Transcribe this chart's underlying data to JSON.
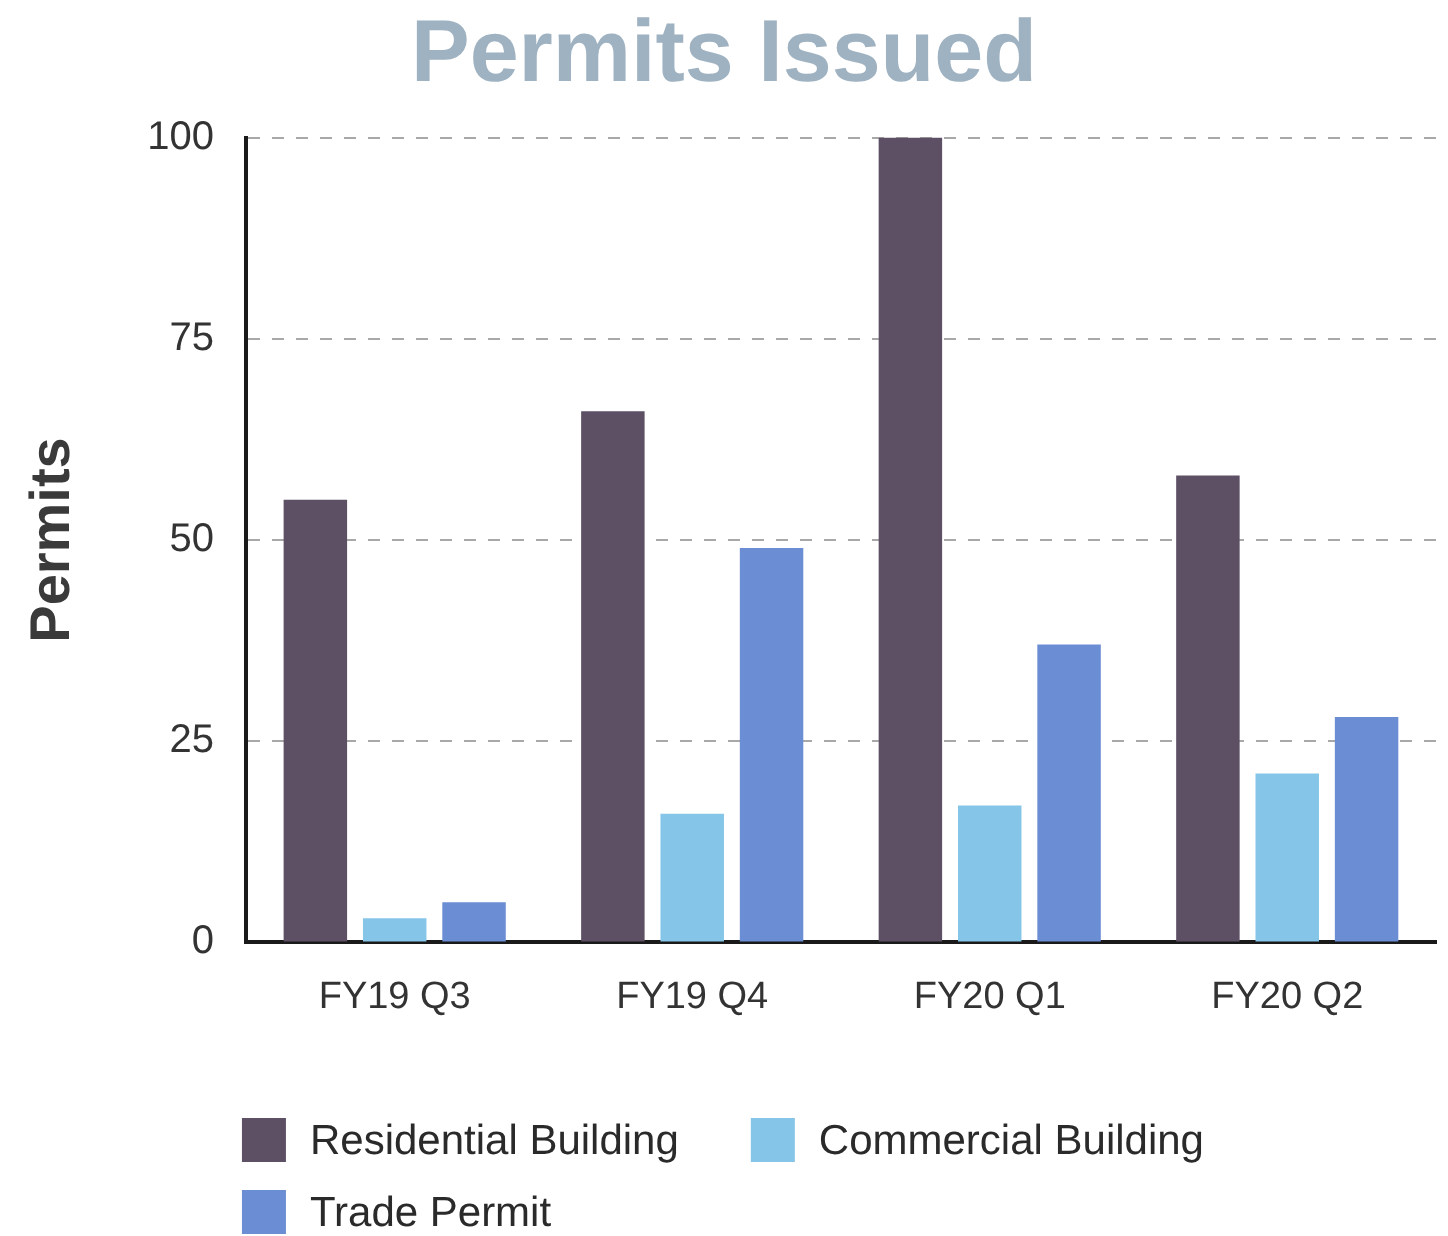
{
  "chart_data": {
    "type": "bar",
    "title": "Permits Issued",
    "ylabel": "Permits",
    "categories": [
      "FY19 Q3",
      "FY19 Q4",
      "FY20 Q1",
      "FY20 Q2"
    ],
    "series": [
      {
        "name": "Residential Building",
        "color": "#5d5064",
        "values": [
          55,
          66,
          100,
          58
        ]
      },
      {
        "name": "Commercial Building",
        "color": "#84c5e8",
        "values": [
          3,
          16,
          17,
          21
        ]
      },
      {
        "name": "Trade Permit",
        "color": "#6b8dd3",
        "values": [
          5,
          49,
          37,
          28
        ]
      }
    ],
    "ylim": [
      0,
      100
    ],
    "yticks": [
      0,
      25,
      50,
      75,
      100
    ],
    "grid": "y",
    "legend": "bottom"
  }
}
